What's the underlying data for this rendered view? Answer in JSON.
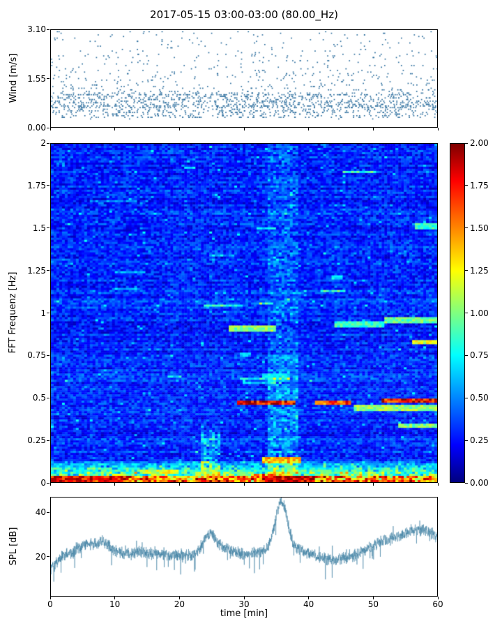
{
  "figure": {
    "title": "2017-05-15 03:00-03:00 (80.00_Hz)",
    "background": "#ffffff",
    "accent_color": "#2e6f9e"
  },
  "chart_data": [
    {
      "type": "scatter",
      "name": "wind",
      "title": "",
      "ylabel": "Wind [m/s]",
      "ylim": [
        0,
        3.1
      ],
      "ytick_labels": [
        "0.00",
        "1.55",
        "3.10"
      ],
      "ytick_values": [
        0,
        1.55,
        3.1
      ],
      "xlim": [
        0,
        60
      ],
      "marker_color": "#2e6f9e",
      "description": "dense quantized wind-speed dots, most between 0.3 and 1.1 m/s, sparser up to 3.1 m/s",
      "synthesis": {
        "seed": 42,
        "n_points": 1900,
        "quantize_step": 0.05167
      }
    },
    {
      "type": "heatmap",
      "name": "spectrogram",
      "ylabel": "FFT Frequenz [Hz]",
      "ylim": [
        0,
        2
      ],
      "ytick_labels": [
        "0",
        "0.25",
        "0.5",
        "0.75",
        "1",
        "1.25",
        "1.5",
        "1.75",
        "2"
      ],
      "ytick_values": [
        0,
        0.25,
        0.5,
        0.75,
        1,
        1.25,
        1.5,
        1.75,
        2
      ],
      "xlim": [
        0,
        60
      ],
      "colormap": "jet",
      "vmin": 0.0,
      "vmax": 2.0,
      "colorbar_tick_labels": [
        "0.00",
        "0.25",
        "0.50",
        "0.75",
        "1.00",
        "1.25",
        "1.50",
        "1.75",
        "2.00"
      ],
      "colorbar_tick_values": [
        0,
        0.25,
        0.5,
        0.75,
        1,
        1.25,
        1.5,
        1.75,
        2
      ],
      "background_level_range": [
        0.1,
        0.5
      ],
      "features": [
        {
          "freq": 0.47,
          "x0": 29,
          "x1": 38,
          "value": 1.95
        },
        {
          "freq": 0.47,
          "x0": 41,
          "x1": 46.5,
          "value": 1.8
        },
        {
          "freq": 0.48,
          "x0": 51.5,
          "x1": 60,
          "value": 1.95
        },
        {
          "freq": 0.44,
          "x0": 47,
          "x1": 60,
          "value": 1.15
        },
        {
          "freq": 0.91,
          "x0": 27.5,
          "x1": 35,
          "value": 1.15
        },
        {
          "freq": 0.93,
          "x0": 44,
          "x1": 52,
          "value": 0.95
        },
        {
          "freq": 0.955,
          "x0": 52,
          "x1": 60,
          "value": 1.05
        },
        {
          "freq": 0.83,
          "x0": 56,
          "x1": 60,
          "value": 1.3
        },
        {
          "freq": 0.335,
          "x0": 54,
          "x1": 60,
          "value": 1.1
        },
        {
          "freq": 1.51,
          "x0": 56.5,
          "x1": 60,
          "value": 0.95
        },
        {
          "freq": 0.63,
          "x0": 33,
          "x1": 36.5,
          "value": 0.85
        },
        {
          "freq": 1.21,
          "x0": 43.5,
          "x1": 45.5,
          "value": 0.8
        },
        {
          "freq": 0.75,
          "x0": 29.5,
          "x1": 31,
          "value": 0.7
        },
        {
          "freq": 0.13,
          "x0": 33,
          "x1": 39,
          "value": 1.5
        },
        {
          "freq": 0.06,
          "x0": 14,
          "x1": 20,
          "value": 1.3
        },
        {
          "freq": 0.05,
          "x0": 22.5,
          "x1": 26.5,
          "value": 1.2
        },
        {
          "freq": 0.02,
          "x0": 0,
          "x1": 12,
          "value": 1.9
        },
        {
          "freq": 0.02,
          "x0": 33,
          "x1": 41,
          "value": 2.0
        }
      ],
      "synthesis": {
        "seed": 1234,
        "nx": 139,
        "ny": 162
      }
    },
    {
      "type": "line",
      "name": "spl",
      "ylabel": "SPL [dB]",
      "xlabel": "time [min]",
      "ylim": [
        2,
        47
      ],
      "ytick_labels": [
        "20",
        "40"
      ],
      "ytick_values": [
        20,
        40
      ],
      "xlim": [
        0,
        60
      ],
      "xtick_labels": [
        "0",
        "10",
        "20",
        "30",
        "40",
        "50",
        "60"
      ],
      "xtick_values": [
        0,
        10,
        20,
        30,
        40,
        50,
        60
      ],
      "line_color": "#3a7da0",
      "baseline_db": 20.5,
      "bumps": [
        {
          "x": 0.3,
          "w": 0.7,
          "a": -5
        },
        {
          "x": 5.5,
          "w": 1.5,
          "a": 5
        },
        {
          "x": 8.3,
          "w": 1.0,
          "a": 5
        },
        {
          "x": 13,
          "w": 2.5,
          "a": 1.5
        },
        {
          "x": 24.6,
          "w": 1.0,
          "a": 9
        },
        {
          "x": 27,
          "w": 1.5,
          "a": 3
        },
        {
          "x": 35.8,
          "w": 0.9,
          "a": 21
        },
        {
          "x": 36.5,
          "w": 3.0,
          "a": 4
        },
        {
          "x": 43,
          "w": 3.0,
          "a": -2
        },
        {
          "x": 52,
          "w": 2.5,
          "a": 6
        },
        {
          "x": 56,
          "w": 2.0,
          "a": 7
        },
        {
          "x": 59,
          "w": 2.0,
          "a": 8
        }
      ],
      "synthesis": {
        "seed": 99,
        "n_points": 2400,
        "noise_sigma": 2.0
      }
    }
  ]
}
